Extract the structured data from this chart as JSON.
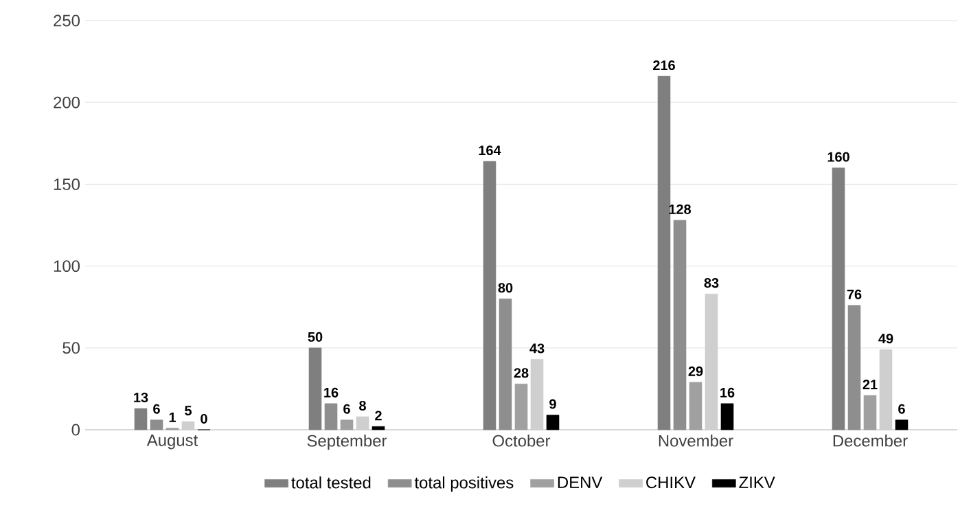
{
  "chart_data": {
    "type": "bar",
    "categories": [
      "August",
      "September",
      "October",
      "November",
      "December"
    ],
    "series": [
      {
        "name": "total tested",
        "color": "#7f7f7f",
        "values": [
          13,
          50,
          164,
          216,
          160
        ]
      },
      {
        "name": "total positives",
        "color": "#8e8e8e",
        "values": [
          6,
          16,
          80,
          128,
          76
        ]
      },
      {
        "name": "DENV",
        "color": "#a0a0a0",
        "values": [
          1,
          6,
          28,
          29,
          21
        ]
      },
      {
        "name": "CHIKV",
        "color": "#cfcfcf",
        "values": [
          5,
          8,
          43,
          83,
          49
        ]
      },
      {
        "name": "ZIKV",
        "color": "#000000",
        "values": [
          0,
          2,
          9,
          16,
          6
        ]
      }
    ],
    "ylim": [
      0,
      250
    ],
    "yticks": [
      0,
      50,
      100,
      150,
      200,
      250
    ],
    "grid": "y",
    "legend": "bottom",
    "data_labels": true
  }
}
